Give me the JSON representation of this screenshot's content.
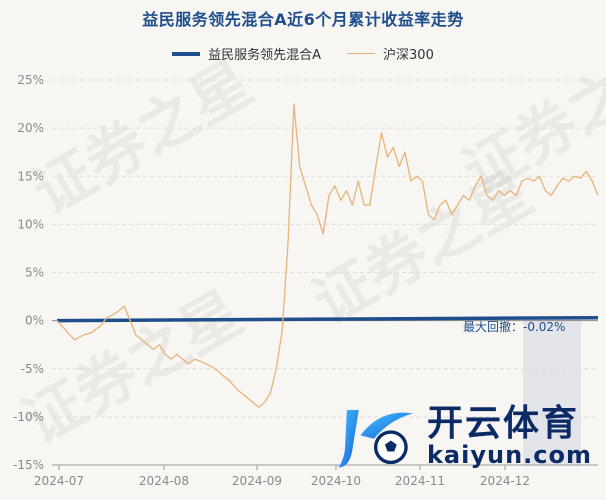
{
  "chart_data": {
    "type": "line",
    "title": "益民服务领先混合A近6个月累计收益率走势",
    "yticks": [
      "25%",
      "20%",
      "15%",
      "10%",
      "5%",
      "0%",
      "-5%",
      "-10%",
      "-15%"
    ],
    "ylim": [
      -15,
      25
    ],
    "xticks": [
      "2024-07",
      "2024-08",
      "2024-09",
      "2024-10",
      "2024-11",
      "2024-12"
    ],
    "grid": true,
    "legend_position": "top",
    "annotation": "最大回撤：-0.02%",
    "watermark": "证券之星",
    "logo": {
      "cn": "开云体育",
      "en": "kaiyun.com"
    },
    "series": [
      {
        "name": "益民服务领先混合A",
        "color": "#1f4e8c",
        "x": [
          0,
          185
        ],
        "y": [
          0,
          0.3
        ]
      },
      {
        "name": "沪深300",
        "color": "#e8b37a",
        "x": [
          0,
          3,
          6,
          9,
          12,
          15,
          17,
          19,
          21,
          23,
          25,
          27,
          29,
          31,
          33,
          35,
          37,
          39,
          41,
          43,
          45,
          47,
          49,
          51,
          53,
          55,
          57,
          59,
          61,
          63,
          65,
          67,
          69,
          71,
          73,
          75,
          77,
          79,
          81,
          83,
          85,
          87,
          89,
          91,
          93,
          95,
          97,
          99,
          101,
          103,
          105,
          107,
          109,
          111,
          113,
          115,
          117,
          119,
          121,
          123,
          125,
          127,
          129,
          131,
          133,
          135,
          137,
          139,
          141,
          143,
          145,
          147,
          149,
          151,
          153,
          155,
          157,
          159,
          161,
          163,
          165,
          167,
          169,
          171,
          173,
          175,
          177,
          179,
          181,
          183,
          185
        ],
        "y": [
          0,
          -1,
          -2,
          -1.5,
          -1.2,
          -0.5,
          0.3,
          0.6,
          1,
          1.5,
          0,
          -1.5,
          -2,
          -2.5,
          -3,
          -2.5,
          -3.5,
          -4,
          -3.5,
          -4,
          -4.5,
          -4,
          -4.2,
          -4.5,
          -4.8,
          -5.2,
          -5.8,
          -6.2,
          -7,
          -7.5,
          -8,
          -8.5,
          -9,
          -8.5,
          -7.5,
          -5,
          -1,
          8,
          22.5,
          16,
          14,
          12,
          11,
          9,
          13,
          14,
          12.5,
          13.5,
          12,
          14.5,
          12,
          12,
          16,
          19.5,
          17,
          18,
          16,
          17.5,
          14.5,
          15,
          14.5,
          11,
          10.5,
          12,
          12.5,
          11,
          12,
          13,
          12.5,
          14,
          15,
          13,
          12.5,
          13.5,
          13,
          13.5,
          13,
          14.5,
          14.8,
          14.5,
          15,
          13.5,
          13,
          14,
          14.8,
          14.5,
          15,
          14.8,
          15.5,
          14.5,
          13
        ]
      }
    ]
  }
}
